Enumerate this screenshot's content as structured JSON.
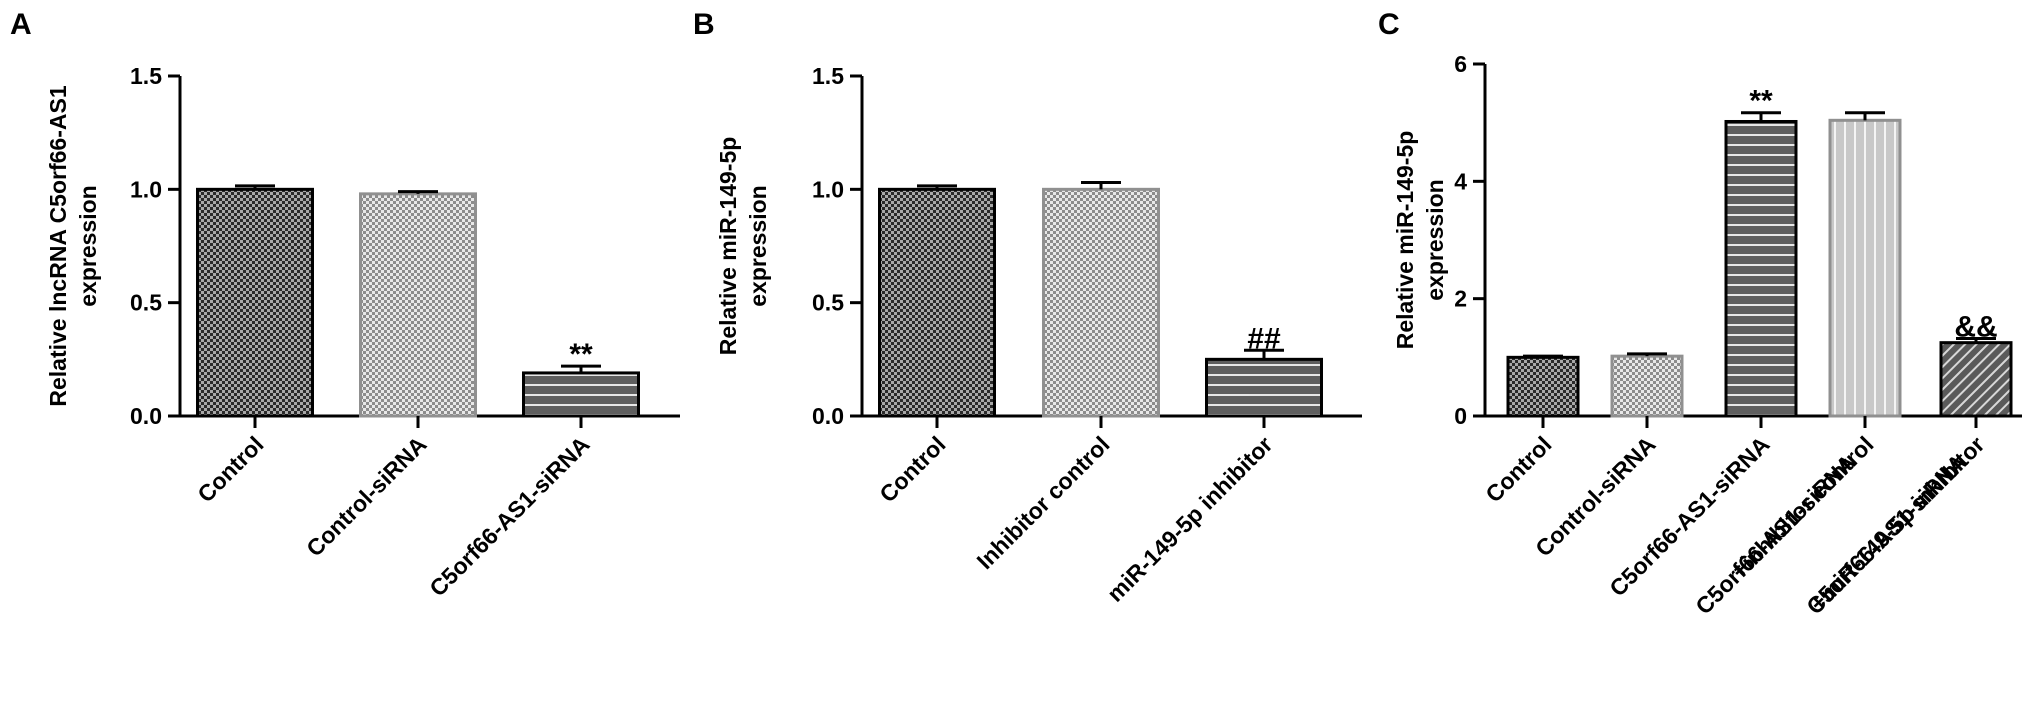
{
  "chart_data": [
    {
      "panel": "A",
      "type": "bar",
      "ylabel": [
        "Relative lncRNA C5orf66-AS1",
        "expression"
      ],
      "ylim": [
        0,
        1.5
      ],
      "yticks": [
        "0.0",
        "0.5",
        "1.0",
        "1.5"
      ],
      "grid": false,
      "categories": [
        {
          "lines": [
            "Control"
          ],
          "value": 1.0,
          "error": 0.015,
          "pattern": "checker-dark",
          "annotation": ""
        },
        {
          "lines": [
            "Control-siRNA"
          ],
          "value": 0.98,
          "error": 0.01,
          "pattern": "checker-light",
          "annotation": ""
        },
        {
          "lines": [
            "C5orf66-AS1-siRNA"
          ],
          "value": 0.19,
          "error": 0.03,
          "pattern": "stripes-dark",
          "annotation": "**"
        }
      ]
    },
    {
      "panel": "B",
      "type": "bar",
      "ylabel": [
        "Relative miR-149-5p",
        "expression"
      ],
      "ylim": [
        0,
        1.5
      ],
      "yticks": [
        "0.0",
        "0.5",
        "1.0",
        "1.5"
      ],
      "grid": false,
      "categories": [
        {
          "lines": [
            "Control"
          ],
          "value": 1.0,
          "error": 0.015,
          "pattern": "checker-dark",
          "annotation": ""
        },
        {
          "lines": [
            "Inhibitor control"
          ],
          "value": 1.0,
          "error": 0.03,
          "pattern": "checker-light",
          "annotation": ""
        },
        {
          "lines": [
            "miR-149-5p inhibitor"
          ],
          "value": 0.25,
          "error": 0.04,
          "pattern": "stripes-dark",
          "annotation": "##"
        }
      ]
    },
    {
      "panel": "C",
      "type": "bar",
      "ylabel": [
        "Relative miR-149-5p",
        "expression"
      ],
      "ylim": [
        0,
        6
      ],
      "yticks": [
        "0",
        "2",
        "4",
        "6"
      ],
      "grid": false,
      "categories": [
        {
          "lines": [
            "Control"
          ],
          "value": 1.0,
          "error": 0.02,
          "pattern": "checker-dark",
          "annotation": ""
        },
        {
          "lines": [
            "Control-siRNA"
          ],
          "value": 1.02,
          "error": 0.04,
          "pattern": "checker-light",
          "annotation": ""
        },
        {
          "lines": [
            "C5orf66-AS1-siRNA"
          ],
          "value": 5.02,
          "error": 0.15,
          "pattern": "stripes-dark",
          "annotation": "**"
        },
        {
          "lines": [
            "C5orf66-AS1-siRNA",
            "+inhibitor control"
          ],
          "value": 5.04,
          "error": 0.13,
          "pattern": "stripes-light",
          "annotation": ""
        },
        {
          "lines": [
            "C5orf66-AS1-siRNA",
            "+miR-149-5p inhibitor"
          ],
          "value": 1.25,
          "error": 0.07,
          "pattern": "diag-dark",
          "annotation": "&&"
        }
      ]
    }
  ]
}
